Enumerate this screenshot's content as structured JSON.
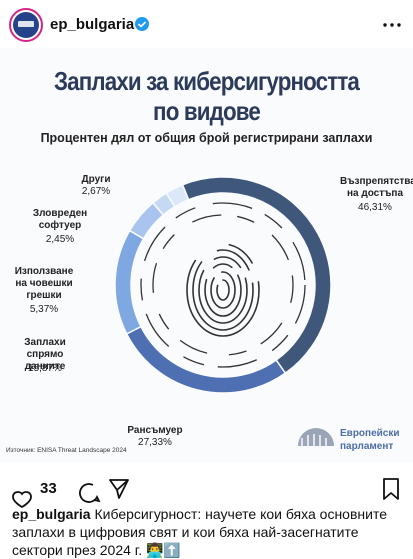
{
  "header": {
    "username": "ep_bulgaria"
  },
  "chart_data": {
    "type": "donut",
    "title": [
      "Заплахи за киберсигурността",
      "по видове"
    ],
    "subtitle": "Процентен дял от общия брой регистрирани заплахи",
    "categories": [
      "Възпрепятстване на достъпа",
      "Рансъмуер",
      "Заплахи спрямо данните",
      "Използване на човешки грешки",
      "Зловреден софтуер",
      "Други"
    ],
    "values": [
      46.31,
      27.33,
      15.87,
      5.37,
      2.45,
      2.67
    ],
    "value_labels": [
      "46,31%",
      "27,33%",
      "15,87%",
      "5,37%",
      "2,45%",
      "2,67%"
    ],
    "colors": [
      "#3f577b",
      "#4e6fb2",
      "#7fa7e2",
      "#a9c5ef",
      "#c6d9f4",
      "#dce8f9"
    ],
    "source": "Източник: ENISA Threat Landscape 2024"
  },
  "logo": [
    "Европейски",
    "парламент"
  ],
  "actions": {
    "likes": "33"
  },
  "caption": {
    "username": "ep_bulgaria",
    "text": "Киберсигурност: научете кои бяха основните заплахи в цифровия свят и кои бяха най-засегнатите сектори през 2024 г. 👨‍💻⬆️"
  }
}
